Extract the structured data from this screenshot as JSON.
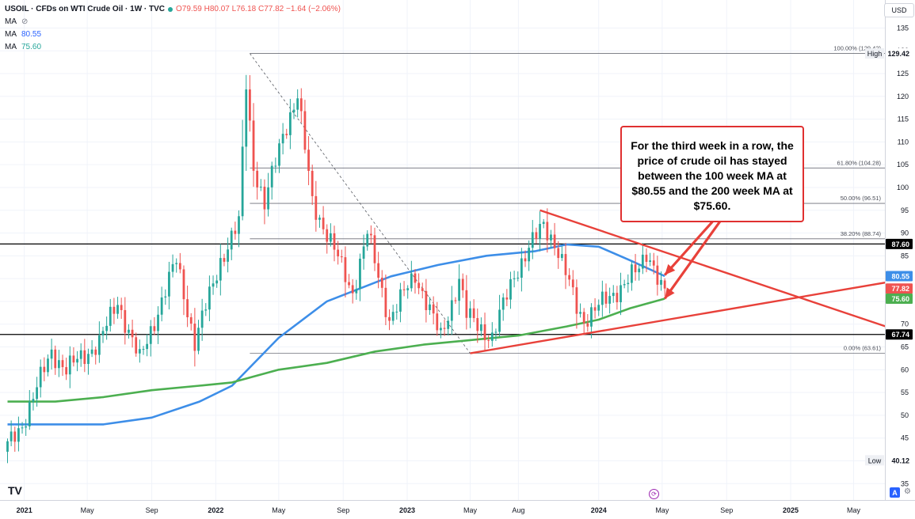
{
  "legend": {
    "symbol": "USOIL · CFDs on WTI Crude Oil · 1W · TVC",
    "ohlc": "O79.59 H80.07 L76.18 C77.82 −1.64 (−2.06%)",
    "ma_rows": [
      {
        "label": "MA",
        "value": "",
        "icon": "eye-off-icon"
      },
      {
        "label": "MA",
        "value": "80.55"
      },
      {
        "label": "MA",
        "value": "75.60"
      }
    ]
  },
  "currency": "USD",
  "callout_text": "For the third week in a row, the price of crude oil has stayed between the 100 week MA at $80.55 and the 200 week MA at $75.60.",
  "buttons": {
    "auto": "A",
    "settings": "⚙"
  },
  "logo_text": "TV",
  "colors": {
    "up": "#26a69a",
    "down": "#ef5350",
    "ma100": "#3d8ee8",
    "ma200": "#4caf50",
    "annotation": "#e8413a",
    "hline": "#000000",
    "fib": "#787b86"
  },
  "chart_data": {
    "type": "candlestick",
    "symbol": "USOIL",
    "timeframe": "1W",
    "ylim": [
      35,
      137
    ],
    "x_range": [
      "2020-11-30",
      "2025-07-14"
    ],
    "y_ticks": [
      35,
      40,
      45,
      50,
      55,
      60,
      65,
      70,
      75,
      80,
      85,
      90,
      95,
      100,
      105,
      110,
      115,
      120,
      125,
      130,
      135
    ],
    "x_ticks": [
      {
        "label": "2021",
        "date": "2021-01-01"
      },
      {
        "label": "May",
        "date": "2021-05-01"
      },
      {
        "label": "Sep",
        "date": "2021-09-01"
      },
      {
        "label": "2022",
        "date": "2022-01-01"
      },
      {
        "label": "May",
        "date": "2022-05-01"
      },
      {
        "label": "Sep",
        "date": "2022-09-01"
      },
      {
        "label": "2023",
        "date": "2023-01-01"
      },
      {
        "label": "May",
        "date": "2023-05-01"
      },
      {
        "label": "Aug",
        "date": "2023-08-01"
      },
      {
        "label": "2024",
        "date": "2024-01-01"
      },
      {
        "label": "May",
        "date": "2024-05-01"
      },
      {
        "label": "Sep",
        "date": "2024-09-01"
      },
      {
        "label": "2025",
        "date": "2025-01-01"
      },
      {
        "label": "May",
        "date": "2025-05-01"
      }
    ],
    "price_path": [
      [
        "2020-11-30",
        42
      ],
      [
        "2021-01-04",
        48
      ],
      [
        "2021-03-01",
        64
      ],
      [
        "2021-03-29",
        60
      ],
      [
        "2021-05-31",
        66
      ],
      [
        "2021-07-05",
        75
      ],
      [
        "2021-08-16",
        62
      ],
      [
        "2021-10-25",
        84
      ],
      [
        "2021-11-29",
        66
      ],
      [
        "2022-01-17",
        84
      ],
      [
        "2022-02-21",
        92
      ],
      [
        "2022-03-07",
        123
      ],
      [
        "2022-03-21",
        105
      ],
      [
        "2022-04-11",
        96
      ],
      [
        "2022-05-16",
        112
      ],
      [
        "2022-06-13",
        120
      ],
      [
        "2022-07-11",
        97
      ],
      [
        "2022-08-15",
        88
      ],
      [
        "2022-09-26",
        77
      ],
      [
        "2022-10-24",
        90
      ],
      [
        "2022-12-05",
        71
      ],
      [
        "2023-01-23",
        81
      ],
      [
        "2023-03-13",
        67
      ],
      [
        "2023-04-17",
        80
      ],
      [
        "2023-05-01",
        72
      ],
      [
        "2023-06-19",
        67
      ],
      [
        "2023-07-31",
        81
      ],
      [
        "2023-09-25",
        92
      ],
      [
        "2023-10-16",
        88
      ],
      [
        "2023-11-27",
        74
      ],
      [
        "2023-12-11",
        71
      ],
      [
        "2024-01-29",
        76
      ],
      [
        "2024-03-25",
        82
      ],
      [
        "2024-04-08",
        86
      ],
      [
        "2024-04-22",
        83
      ],
      [
        "2024-05-06",
        77.82
      ]
    ],
    "last_candle": {
      "date": "2024-05-06",
      "open": 79.59,
      "high": 80.07,
      "low": 76.18,
      "close": 77.82
    },
    "moving_averages": [
      {
        "name": "100 week MA",
        "color": "#3d8ee8",
        "last": 80.55,
        "points": [
          [
            "2020-11-30",
            48
          ],
          [
            "2021-06-01",
            48
          ],
          [
            "2021-09-01",
            49.5
          ],
          [
            "2021-12-01",
            53
          ],
          [
            "2022-02-01",
            56.5
          ],
          [
            "2022-05-01",
            67
          ],
          [
            "2022-08-01",
            75
          ],
          [
            "2022-12-01",
            80.5
          ],
          [
            "2023-03-01",
            83
          ],
          [
            "2023-06-01",
            85
          ],
          [
            "2023-09-01",
            86
          ],
          [
            "2023-11-01",
            87.5
          ],
          [
            "2024-01-01",
            87
          ],
          [
            "2024-03-01",
            84
          ],
          [
            "2024-05-06",
            80.55
          ]
        ]
      },
      {
        "name": "200 week MA",
        "color": "#4caf50",
        "last": 75.6,
        "points": [
          [
            "2020-11-30",
            53
          ],
          [
            "2021-03-01",
            53
          ],
          [
            "2021-06-01",
            54
          ],
          [
            "2021-09-01",
            55.5
          ],
          [
            "2021-12-01",
            56.5
          ],
          [
            "2022-02-01",
            57.2
          ],
          [
            "2022-05-01",
            60
          ],
          [
            "2022-08-01",
            61.5
          ],
          [
            "2022-11-01",
            64
          ],
          [
            "2023-02-01",
            65.5
          ],
          [
            "2023-05-01",
            66.5
          ],
          [
            "2023-08-01",
            67.5
          ],
          [
            "2023-11-01",
            69.5
          ],
          [
            "2024-01-01",
            71
          ],
          [
            "2024-03-01",
            73.5
          ],
          [
            "2024-05-06",
            75.6
          ]
        ]
      }
    ],
    "horizontal_lines": [
      {
        "price": 87.6,
        "label": "87.60"
      },
      {
        "price": 67.74,
        "label": "67.74"
      }
    ],
    "fibonacci": {
      "from_date": "2022-03-07",
      "levels": [
        {
          "label": "100.00% (129.42)",
          "price": 129.42
        },
        {
          "label": "61.80% (104.28)",
          "price": 104.28
        },
        {
          "label": "50.00% (96.51)",
          "price": 96.51
        },
        {
          "label": "38.20% (88.74)",
          "price": 88.74
        },
        {
          "label": "0.00% (63.61)",
          "price": 63.61
        }
      ],
      "diagonal": [
        [
          "2022-03-07",
          129.42
        ],
        [
          "2023-05-01",
          63.61
        ]
      ]
    },
    "trend_lines": [
      {
        "points": [
          [
            "2023-05-01",
            63.61
          ],
          [
            "2025-07-14",
            79.4
          ]
        ]
      },
      {
        "points": [
          [
            "2023-09-11",
            95
          ],
          [
            "2025-07-14",
            69
          ]
        ]
      }
    ],
    "arrows": [
      {
        "from": [
          "2024-08-05",
          92.5
        ],
        "to": [
          "2024-05-06",
          80.8
        ]
      },
      {
        "from": [
          "2024-08-19",
          92.5
        ],
        "to": [
          "2024-05-06",
          75.6
        ]
      }
    ],
    "price_labels": [
      {
        "text": "129.42",
        "price": 129.42,
        "style": "plain",
        "tag": "High"
      },
      {
        "text": "87.60",
        "price": 87.6,
        "style": "black"
      },
      {
        "text": "80.55",
        "price": 80.55,
        "style": "blue"
      },
      {
        "text": "77.82",
        "price": 77.82,
        "style": "red"
      },
      {
        "text": "75.60",
        "price": 75.6,
        "style": "green"
      },
      {
        "text": "67.74",
        "price": 67.74,
        "style": "black"
      },
      {
        "text": "40.12",
        "price": 40.12,
        "style": "plain",
        "tag": "Low"
      }
    ]
  }
}
